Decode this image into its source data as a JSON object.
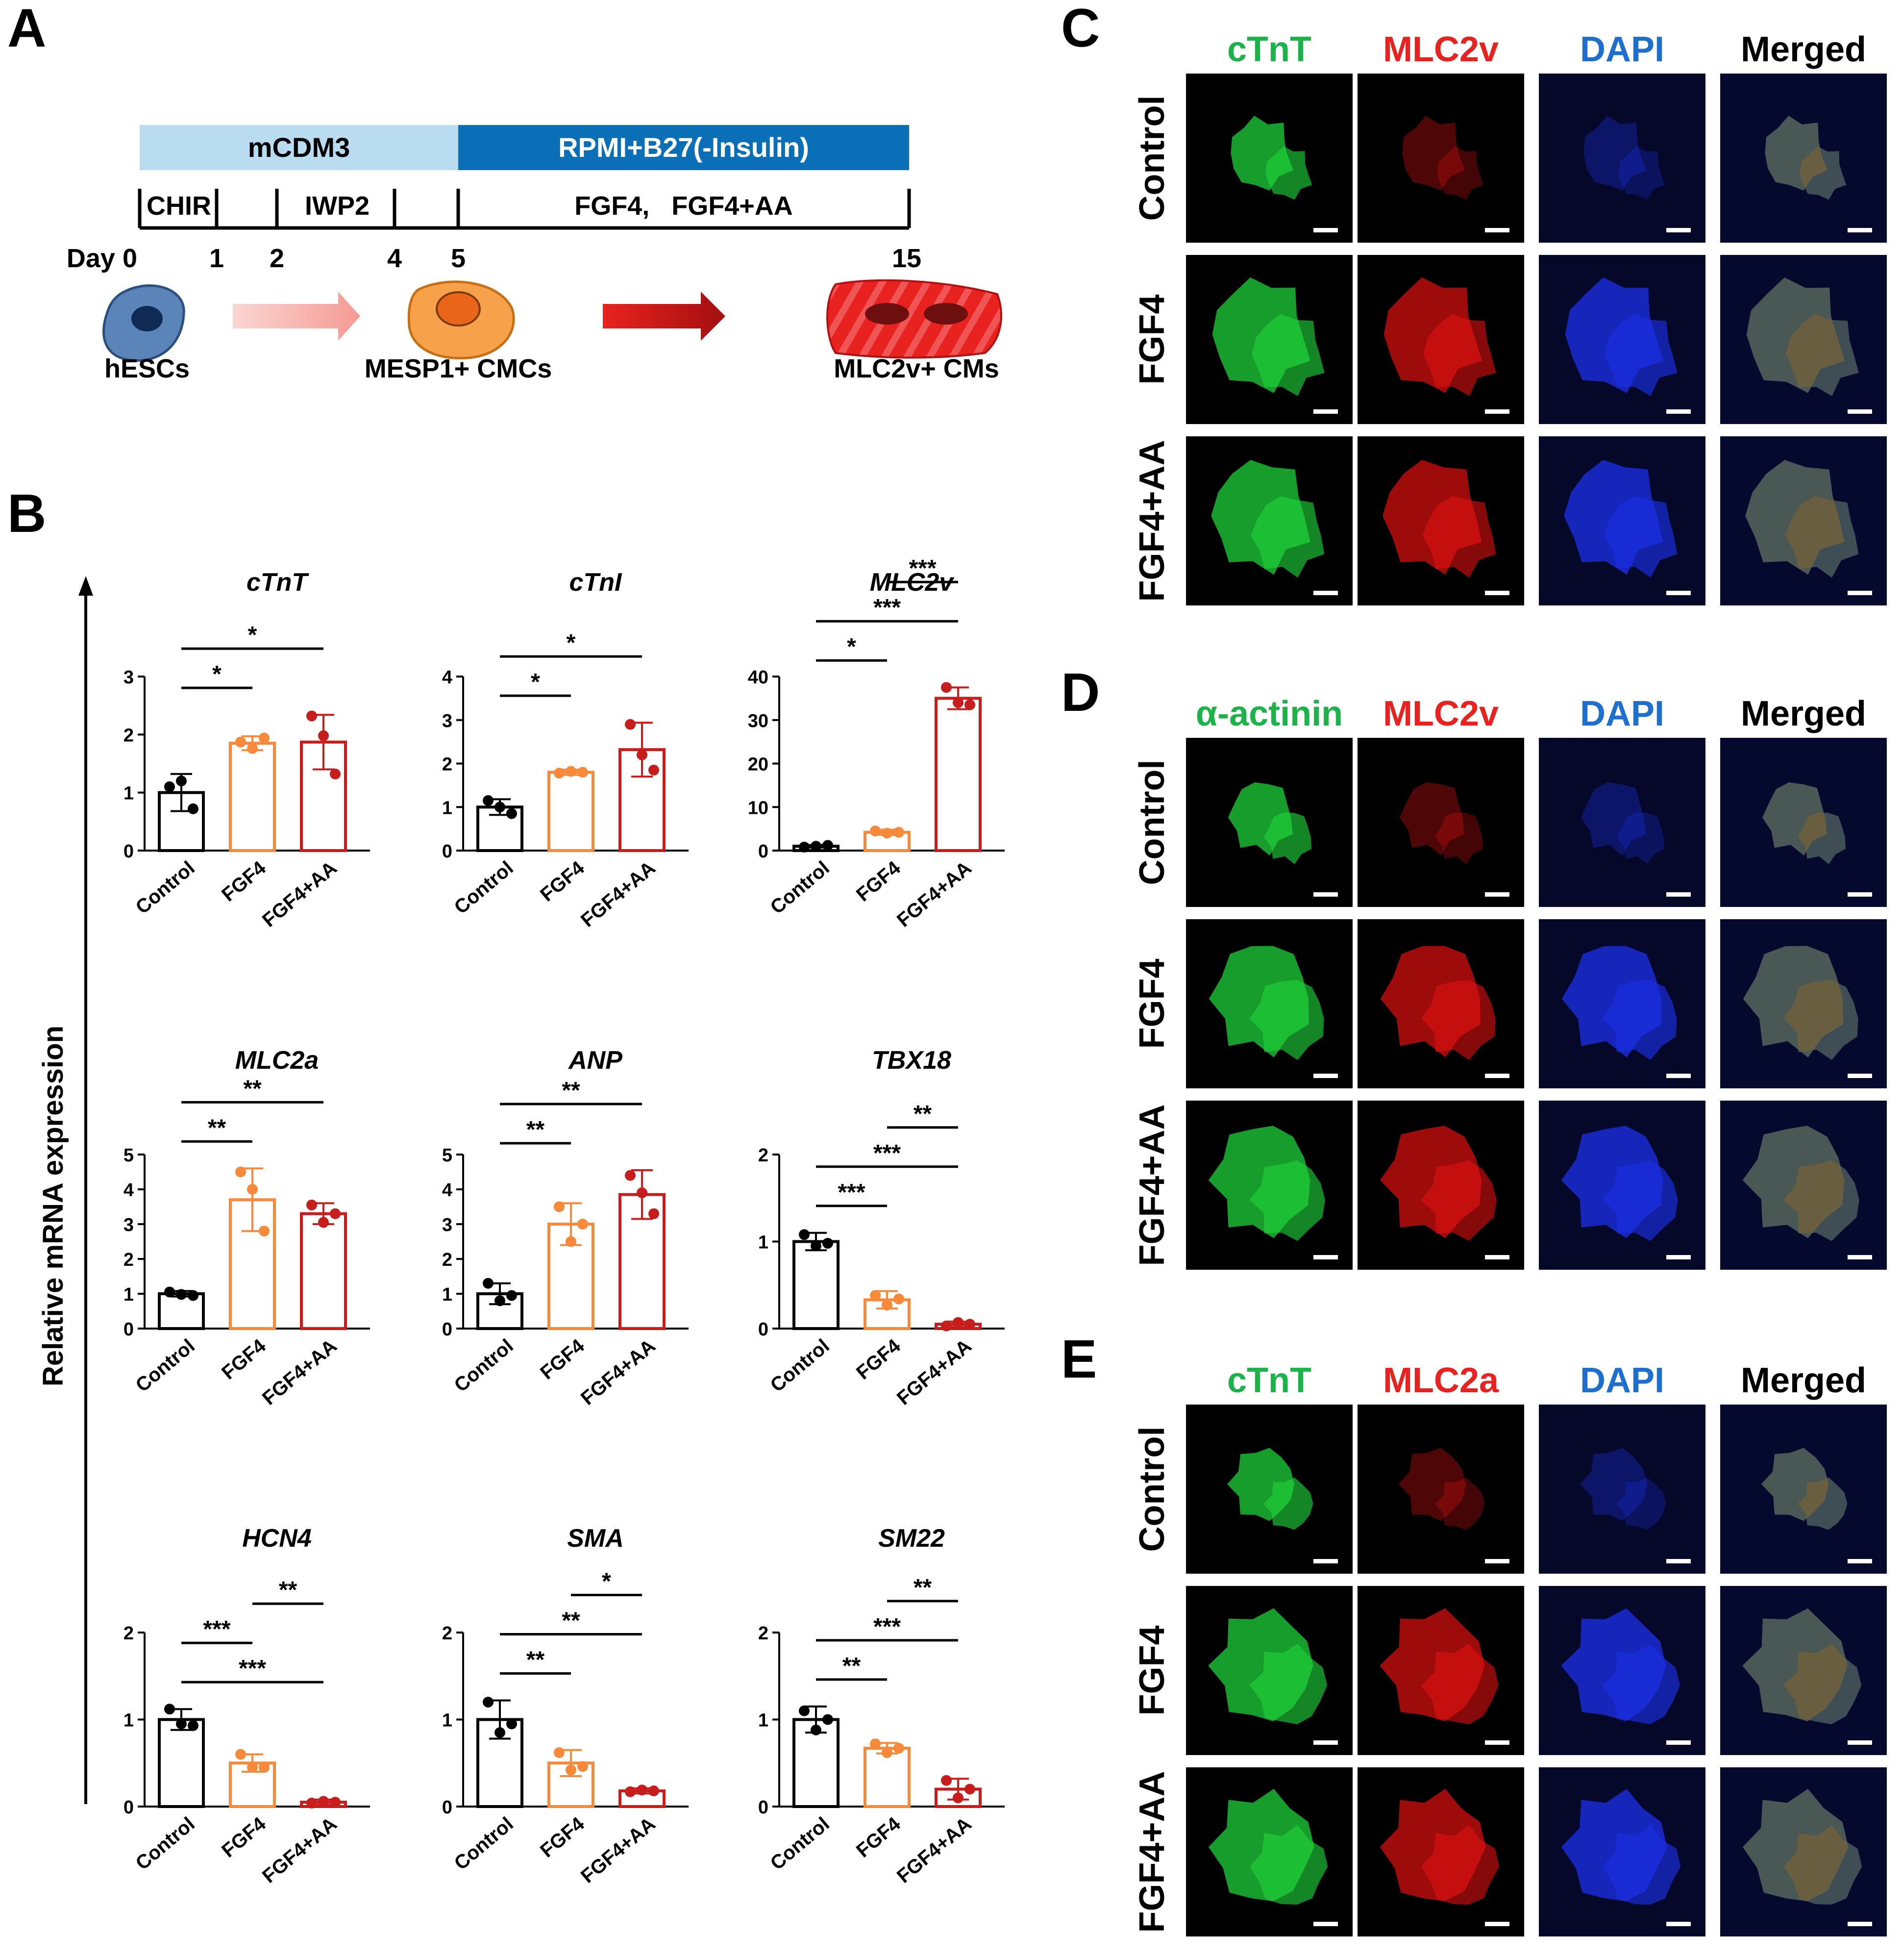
{
  "panel_letters": [
    "A",
    "B",
    "C",
    "D",
    "E"
  ],
  "timeline": {
    "bar1": "mCDM3",
    "bar2": "RPMI+B27(-Insulin)",
    "treat_chir": "CHIR",
    "treat_iwp2": "IWP2",
    "treat_fgf": "FGF4,   FGF4+AA",
    "day_label": "Day 0",
    "days": [
      "1",
      "2",
      "4",
      "5",
      "15"
    ],
    "cells": [
      "hESCs",
      "MESP1+ CMCs",
      "MLC2v+ CMs"
    ],
    "colors": {
      "light_bar": "#b9dcf1",
      "dark_bar": "#0b6fb8",
      "hesc": "#5b84b8",
      "mesp": "#f7a24a",
      "cm": "#e8231f"
    }
  },
  "y_axis_label": "Relative mRNA expression",
  "chart_data": [
    {
      "type": "bar",
      "title": "cTnT",
      "categories": [
        "Control",
        "FGF4",
        "FGF4+AA"
      ],
      "values": [
        1.0,
        1.85,
        1.87
      ],
      "errors": [
        0.32,
        0.12,
        0.47
      ],
      "points": [
        [
          1.1,
          1.2,
          0.72
        ],
        [
          1.87,
          1.76,
          1.94
        ],
        [
          2.32,
          1.98,
          1.32
        ]
      ],
      "yticks": [
        "0",
        "1",
        "2",
        "3"
      ],
      "ylim": [
        0,
        3
      ],
      "sig": [
        {
          "from": 0,
          "to": 1,
          "label": "*"
        },
        {
          "from": 0,
          "to": 2,
          "label": "*"
        }
      ]
    },
    {
      "type": "bar",
      "title": "cTnI",
      "categories": [
        "Control",
        "FGF4",
        "FGF4+AA"
      ],
      "values": [
        1.0,
        1.8,
        2.32
      ],
      "errors": [
        0.18,
        0.06,
        0.62
      ],
      "points": [
        [
          1.15,
          1.0,
          0.85
        ],
        [
          1.78,
          1.82,
          1.8
        ],
        [
          2.9,
          2.2,
          1.85
        ]
      ],
      "yticks": [
        "0",
        "1",
        "2",
        "3",
        "4"
      ],
      "ylim": [
        0,
        4
      ],
      "sig": [
        {
          "from": 0,
          "to": 1,
          "label": "*"
        },
        {
          "from": 0,
          "to": 2,
          "label": "*"
        }
      ]
    },
    {
      "type": "bar",
      "title": "MLC2v",
      "categories": [
        "Control",
        "FGF4",
        "FGF4+AA"
      ],
      "values": [
        1.0,
        4.2,
        35.0
      ],
      "errors": [
        0.3,
        0.6,
        2.5
      ],
      "points": [
        [
          0.8,
          1.0,
          1.2
        ],
        [
          4.5,
          4.0,
          4.2
        ],
        [
          37.5,
          34.0,
          33.5
        ]
      ],
      "yticks": [
        "0",
        "10",
        "20",
        "30",
        "40"
      ],
      "ylim": [
        0,
        40
      ],
      "sig": [
        {
          "from": 0,
          "to": 1,
          "label": "*"
        },
        {
          "from": 0,
          "to": 2,
          "label": "***"
        },
        {
          "from": 1,
          "to": 2,
          "label": "***"
        }
      ]
    },
    {
      "type": "bar",
      "title": "MLC2a",
      "categories": [
        "Control",
        "FGF4",
        "FGF4+AA"
      ],
      "values": [
        1.0,
        3.7,
        3.3
      ],
      "errors": [
        0.08,
        0.9,
        0.3
      ],
      "points": [
        [
          1.05,
          0.98,
          0.95
        ],
        [
          4.5,
          4.0,
          2.8
        ],
        [
          3.55,
          3.05,
          3.3
        ]
      ],
      "yticks": [
        "0",
        "1",
        "2",
        "3",
        "4",
        "5"
      ],
      "ylim": [
        0,
        5
      ],
      "sig": [
        {
          "from": 0,
          "to": 1,
          "label": "**"
        },
        {
          "from": 0,
          "to": 2,
          "label": "**"
        }
      ]
    },
    {
      "type": "bar",
      "title": "ANP",
      "categories": [
        "Control",
        "FGF4",
        "FGF4+AA"
      ],
      "values": [
        1.0,
        3.0,
        3.85
      ],
      "errors": [
        0.3,
        0.6,
        0.7
      ],
      "points": [
        [
          1.3,
          0.8,
          0.95
        ],
        [
          3.5,
          2.5,
          3.0
        ],
        [
          4.4,
          3.9,
          3.3
        ]
      ],
      "yticks": [
        "0",
        "1",
        "2",
        "3",
        "4",
        "5"
      ],
      "ylim": [
        0,
        5
      ],
      "sig": [
        {
          "from": 0,
          "to": 1,
          "label": "**"
        },
        {
          "from": 0,
          "to": 2,
          "label": "**"
        }
      ]
    },
    {
      "type": "bar",
      "title": "TBX18",
      "categories": [
        "Control",
        "FGF4",
        "FGF4+AA"
      ],
      "values": [
        1.0,
        0.33,
        0.05
      ],
      "errors": [
        0.1,
        0.1,
        0.03
      ],
      "points": [
        [
          1.08,
          0.95,
          0.98
        ],
        [
          0.38,
          0.27,
          0.34
        ],
        [
          0.03,
          0.07,
          0.05
        ]
      ],
      "yticks": [
        "0",
        "1",
        "2"
      ],
      "ylim": [
        0,
        2
      ],
      "sig": [
        {
          "from": 0,
          "to": 1,
          "label": "***"
        },
        {
          "from": 0,
          "to": 2,
          "label": "***"
        },
        {
          "from": 1,
          "to": 2,
          "label": "**"
        }
      ]
    },
    {
      "type": "bar",
      "title": "HCN4",
      "categories": [
        "Control",
        "FGF4",
        "FGF4+AA"
      ],
      "values": [
        1.0,
        0.5,
        0.05
      ],
      "errors": [
        0.12,
        0.1,
        0.03
      ],
      "points": [
        [
          1.12,
          0.95,
          0.93
        ],
        [
          0.6,
          0.45,
          0.45
        ],
        [
          0.04,
          0.06,
          0.05
        ]
      ],
      "yticks": [
        "0",
        "1",
        "2"
      ],
      "ylim": [
        0,
        2
      ],
      "sig": [
        {
          "from": 0,
          "to": 2,
          "label": "***"
        },
        {
          "from": 0,
          "to": 1,
          "label": "***"
        },
        {
          "from": 1,
          "to": 2,
          "label": "**"
        }
      ]
    },
    {
      "type": "bar",
      "title": "SMA",
      "categories": [
        "Control",
        "FGF4",
        "FGF4+AA"
      ],
      "values": [
        1.0,
        0.5,
        0.18
      ],
      "errors": [
        0.22,
        0.15,
        0.03
      ],
      "points": [
        [
          1.2,
          0.85,
          0.95
        ],
        [
          0.62,
          0.42,
          0.46
        ],
        [
          0.17,
          0.19,
          0.18
        ]
      ],
      "yticks": [
        "0",
        "1",
        "2"
      ],
      "ylim": [
        0,
        2
      ],
      "sig": [
        {
          "from": 0,
          "to": 1,
          "label": "**"
        },
        {
          "from": 0,
          "to": 2,
          "label": "**"
        },
        {
          "from": 1,
          "to": 2,
          "label": "*"
        }
      ]
    },
    {
      "type": "bar",
      "title": "SM22",
      "categories": [
        "Control",
        "FGF4",
        "FGF4+AA"
      ],
      "values": [
        1.0,
        0.67,
        0.2
      ],
      "errors": [
        0.15,
        0.06,
        0.12
      ],
      "points": [
        [
          1.1,
          0.88,
          1.0
        ],
        [
          0.72,
          0.62,
          0.67
        ],
        [
          0.3,
          0.1,
          0.2
        ]
      ],
      "yticks": [
        "0",
        "1",
        "2"
      ],
      "ylim": [
        0,
        2
      ],
      "sig": [
        {
          "from": 0,
          "to": 1,
          "label": "**"
        },
        {
          "from": 0,
          "to": 2,
          "label": "***"
        },
        {
          "from": 1,
          "to": 2,
          "label": "**"
        }
      ]
    }
  ],
  "bar_colors": [
    "#000000",
    "#f7893a",
    "#c81d1d"
  ],
  "dot_colors": [
    "#000000",
    "#f7893a",
    "#c81d1d"
  ],
  "micro_panels": [
    {
      "letter": "C",
      "headers": [
        "cTnT",
        "MLC2v",
        "DAPI",
        "Merged"
      ],
      "rows": [
        "Control",
        "FGF4",
        "FGF4+AA"
      ]
    },
    {
      "letter": "D",
      "headers": [
        "α-actinin",
        "MLC2v",
        "DAPI",
        "Merged"
      ],
      "rows": [
        "Control",
        "FGF4",
        "FGF4+AA"
      ]
    },
    {
      "letter": "E",
      "headers": [
        "cTnT",
        "MLC2a",
        "DAPI",
        "Merged"
      ],
      "rows": [
        "Control",
        "FGF4",
        "FGF4+AA"
      ]
    }
  ],
  "header_colors": [
    "#1bb34a",
    "#e8231f",
    "#1f6fcf",
    "#000000"
  ],
  "stain_colors": [
    "#1fd13a",
    "#e01010",
    "#1a2ee0"
  ]
}
